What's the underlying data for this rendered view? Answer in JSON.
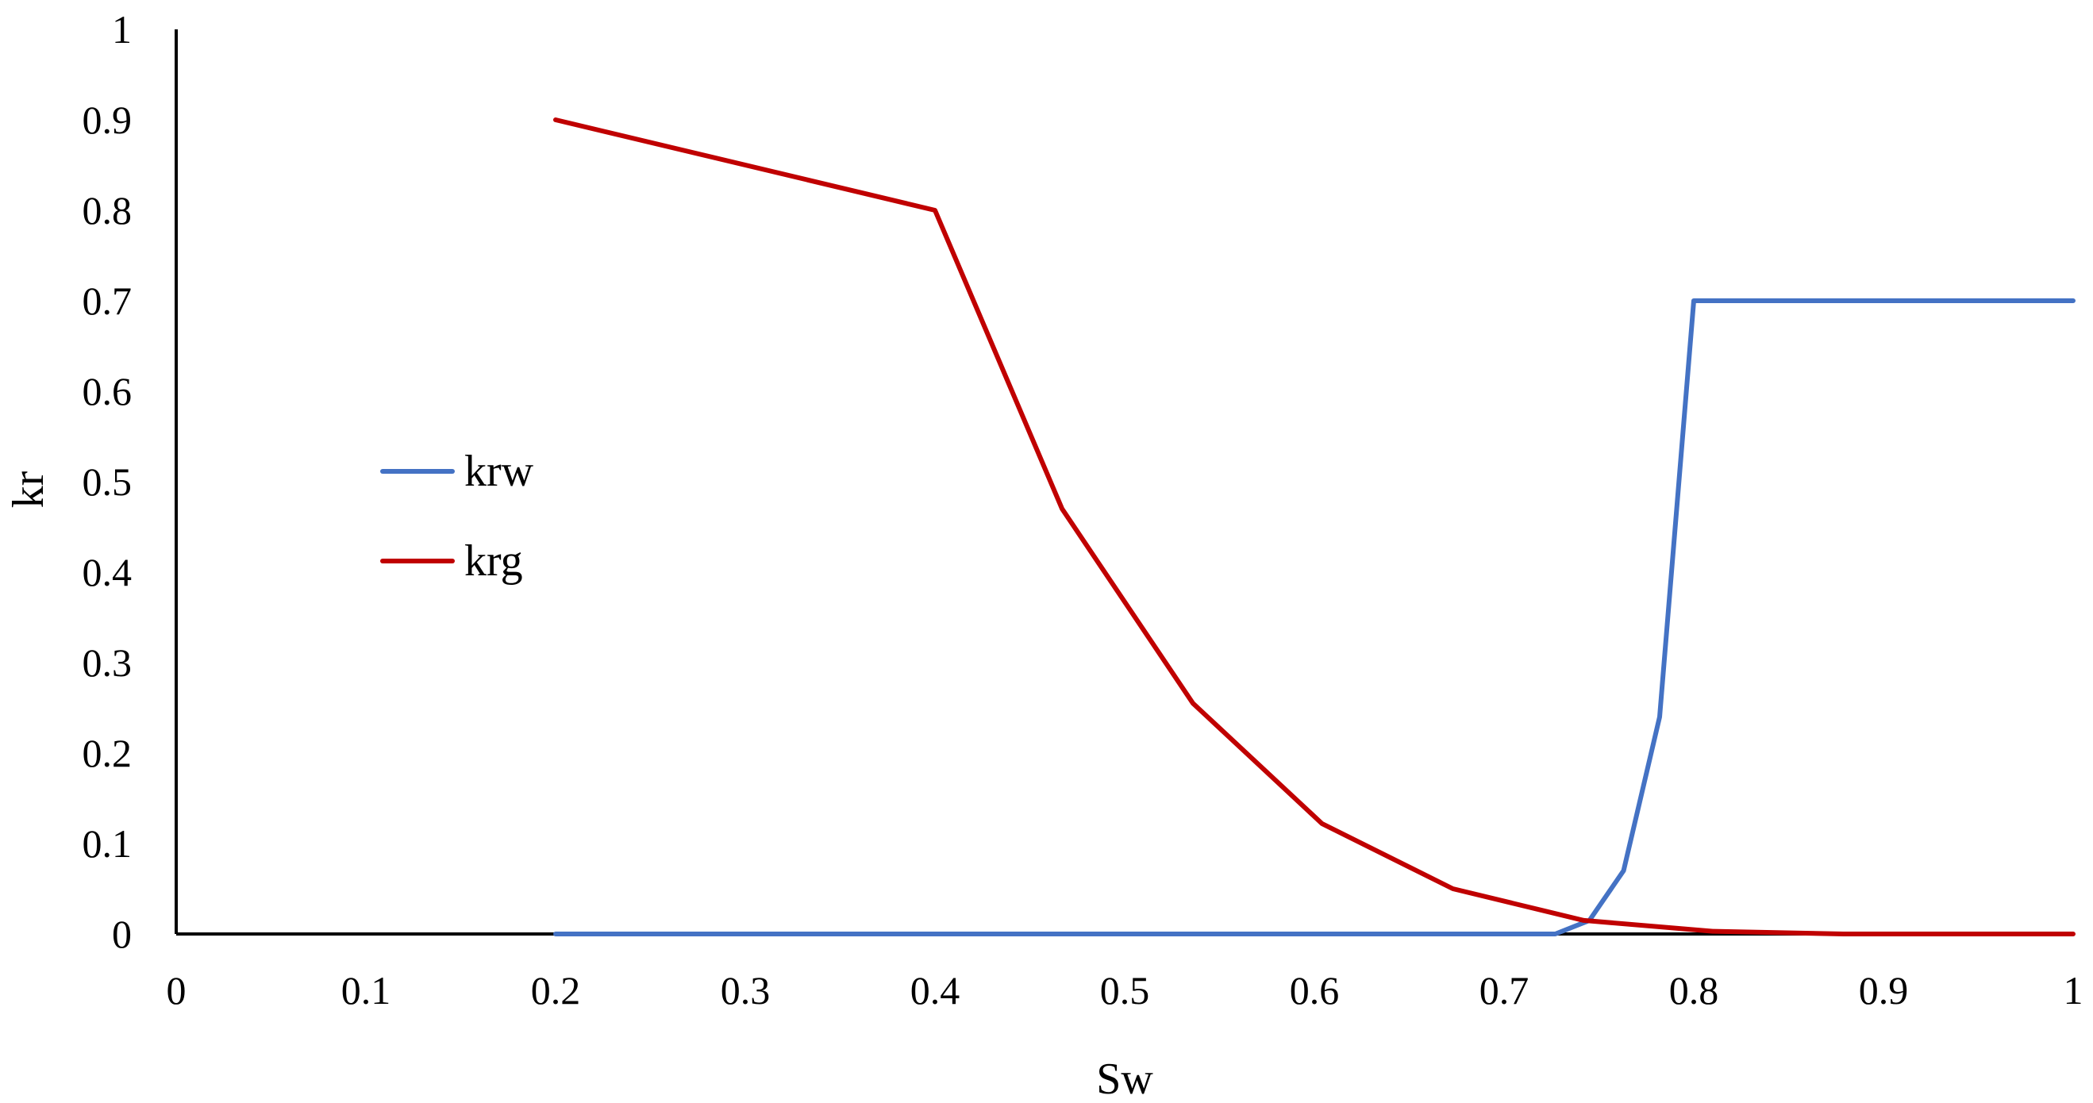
{
  "chart_data": {
    "type": "line",
    "title": "",
    "xlabel": "Sw",
    "ylabel": "kr",
    "xlim": [
      0,
      1
    ],
    "ylim": [
      0,
      1
    ],
    "x_ticks": [
      "0",
      "0.1",
      "0.2",
      "0.3",
      "0.4",
      "0.5",
      "0.6",
      "0.7",
      "0.8",
      "0.9",
      "1"
    ],
    "y_ticks": [
      "0",
      "0.1",
      "0.2",
      "0.3",
      "0.4",
      "0.5",
      "0.6",
      "0.7",
      "0.8",
      "0.9",
      "1"
    ],
    "grid": false,
    "legend_position": "left-middle",
    "series": [
      {
        "name": "krw",
        "color": "#4472C4",
        "x": [
          0.2,
          0.4,
          0.6,
          0.7,
          0.727,
          0.745,
          0.763,
          0.782,
          0.8,
          1.0
        ],
        "y": [
          0,
          0,
          0,
          0,
          0,
          0.015,
          0.07,
          0.24,
          0.7,
          0.7
        ]
      },
      {
        "name": "krg",
        "color": "#C00000",
        "x": [
          0.2,
          0.4,
          0.467,
          0.536,
          0.604,
          0.673,
          0.742,
          0.81,
          0.879,
          1.0
        ],
        "y": [
          0.9,
          0.8,
          0.47,
          0.255,
          0.122,
          0.05,
          0.015,
          0.003,
          0.0,
          0.0
        ]
      }
    ]
  }
}
